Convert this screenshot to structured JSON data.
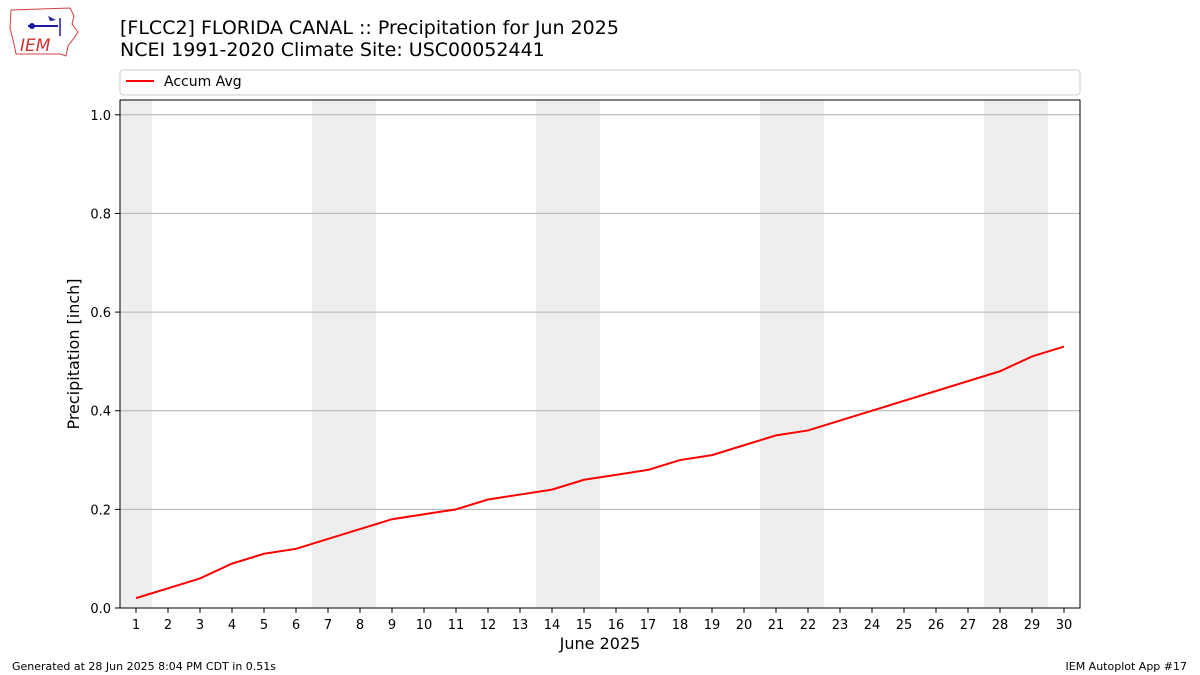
{
  "header": {
    "title_line1": "[FLCC2] FLORIDA CANAL :: Precipitation for Jun 2025",
    "title_line2": "NCEI 1991-2020 Climate Site: USC00052441"
  },
  "logo": {
    "text": "IEM"
  },
  "footer": {
    "generated": "Generated at 28 Jun 2025 8:04 PM CDT in 0.51s",
    "app": "IEM Autoplot App #17"
  },
  "colors": {
    "series_line": "#ff0000",
    "weekend_band": "#eeeeee",
    "grid": "#b0b0b0"
  },
  "chart_data": {
    "type": "line",
    "xlabel": "June 2025",
    "ylabel": "Precipitation [inch]",
    "x": [
      1,
      2,
      3,
      4,
      5,
      6,
      7,
      8,
      9,
      10,
      11,
      12,
      13,
      14,
      15,
      16,
      17,
      18,
      19,
      20,
      21,
      22,
      23,
      24,
      25,
      26,
      27,
      28,
      29,
      30
    ],
    "xticks": [
      "1",
      "2",
      "3",
      "4",
      "5",
      "6",
      "7",
      "8",
      "9",
      "10",
      "11",
      "12",
      "13",
      "14",
      "15",
      "16",
      "17",
      "18",
      "19",
      "20",
      "21",
      "22",
      "23",
      "24",
      "25",
      "26",
      "27",
      "28",
      "29",
      "30"
    ],
    "xlim": [
      0.5,
      30.5
    ],
    "ylim": [
      0,
      1.03
    ],
    "yticks": [
      "0.0",
      "0.2",
      "0.4",
      "0.6",
      "0.8",
      "1.0"
    ],
    "ytick_values": [
      0,
      0.2,
      0.4,
      0.6,
      0.8,
      1.0
    ],
    "grid": "y",
    "legend_position": "top",
    "weekend_days": [
      1,
      7,
      8,
      14,
      15,
      21,
      22,
      28,
      29
    ],
    "series": [
      {
        "name": "Accum Avg",
        "values": [
          0.02,
          0.04,
          0.06,
          0.09,
          0.11,
          0.12,
          0.14,
          0.16,
          0.18,
          0.19,
          0.2,
          0.22,
          0.23,
          0.24,
          0.26,
          0.27,
          0.28,
          0.3,
          0.31,
          0.33,
          0.35,
          0.36,
          0.38,
          0.4,
          0.42,
          0.44,
          0.46,
          0.48,
          0.51,
          0.53
        ]
      }
    ]
  }
}
